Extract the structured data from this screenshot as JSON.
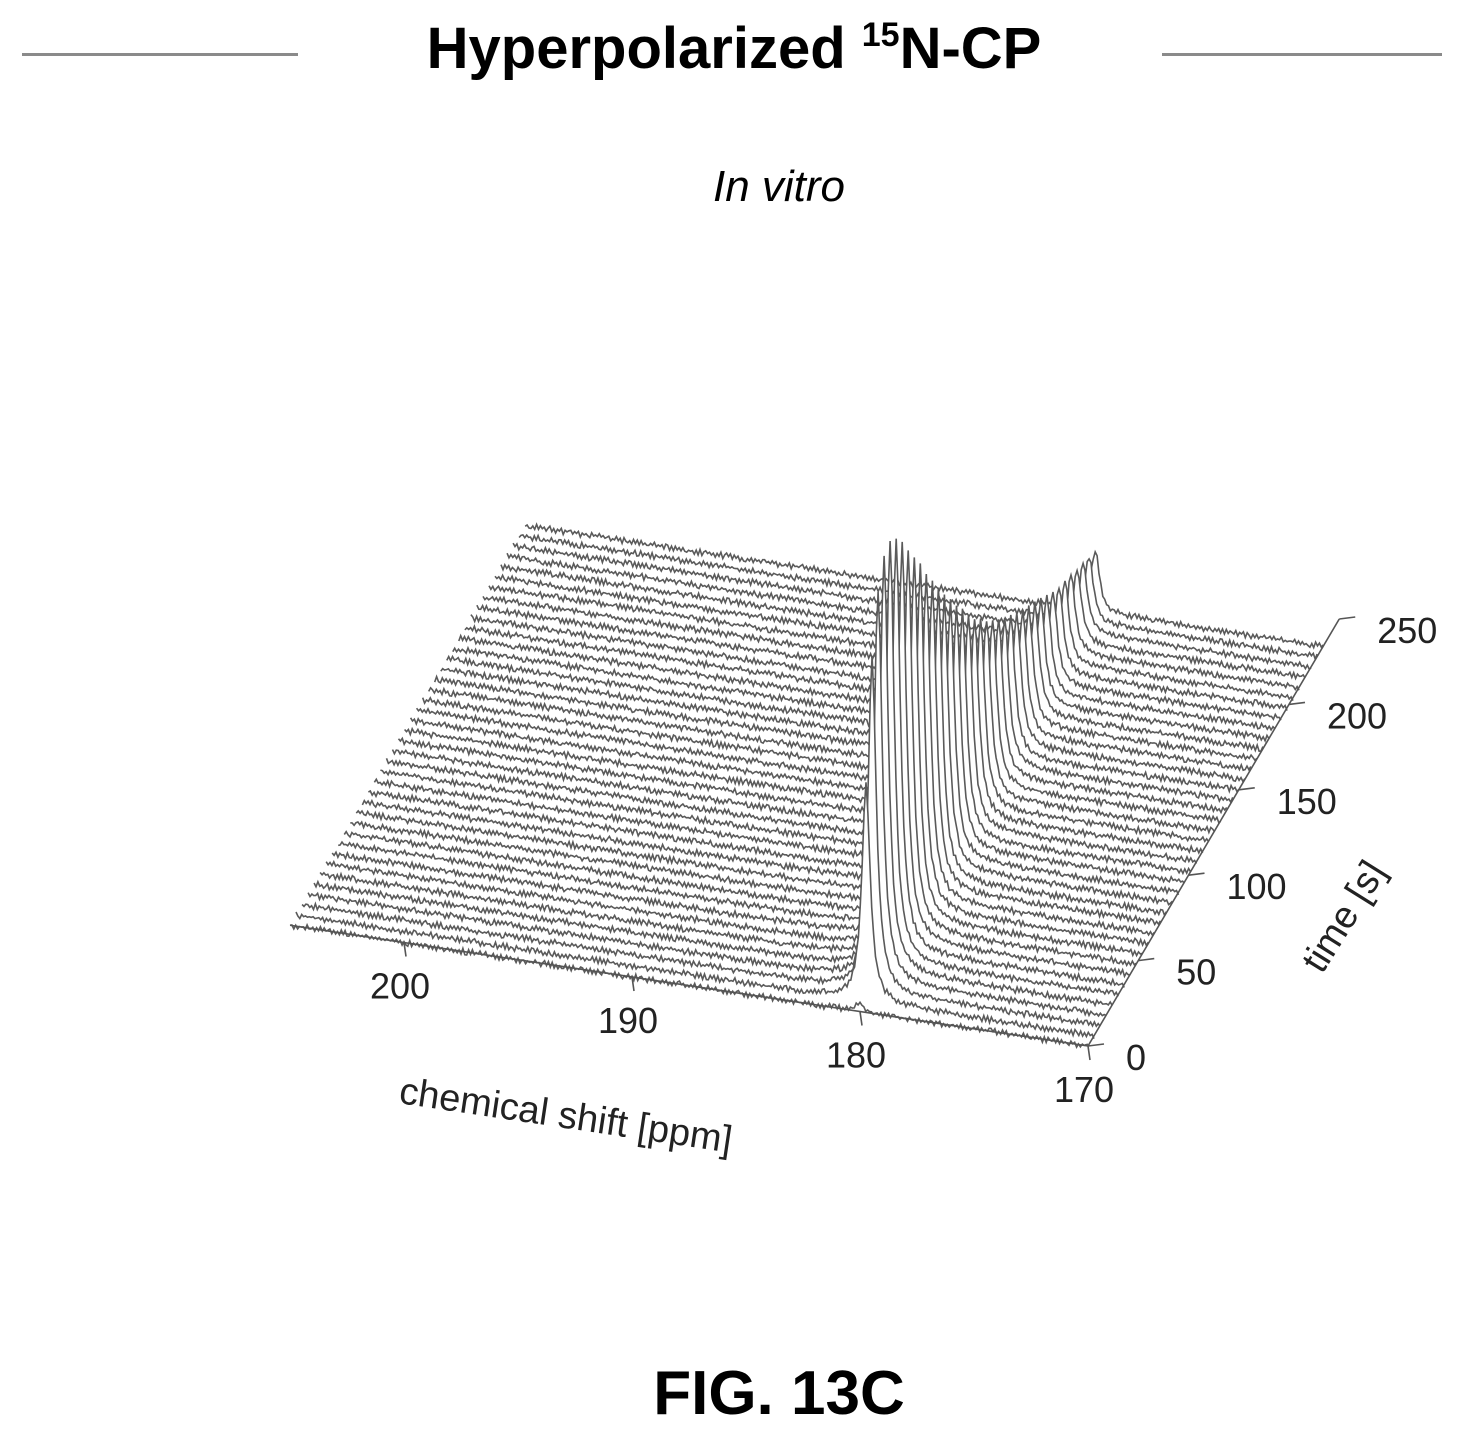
{
  "figure": {
    "title_main": "Hyperpolarized ",
    "title_sup": "15",
    "title_tail": "N-CP",
    "subtitle": "In vitro",
    "fig_label": "FIG. 13C"
  },
  "chart_data": {
    "type": "waterfall",
    "title": "Hyperpolarized 15N-CP",
    "subtitle": "In vitro",
    "xlabel": "chemical shift [ppm]",
    "ylabel": "time [s]",
    "x_ticks": [
      200,
      190,
      180,
      170
    ],
    "y_ticks": [
      0,
      50,
      100,
      150,
      200,
      250
    ],
    "x_range": [
      205,
      170
    ],
    "y_range": [
      0,
      250
    ],
    "peak_shift_ppm": 180,
    "num_spectra": 40,
    "spectrum_interval_s": 6,
    "peak_intensity_trend": "signal builds to a maximum near 40 s, then decays toward 240 s",
    "grid": false,
    "legend": "none"
  }
}
